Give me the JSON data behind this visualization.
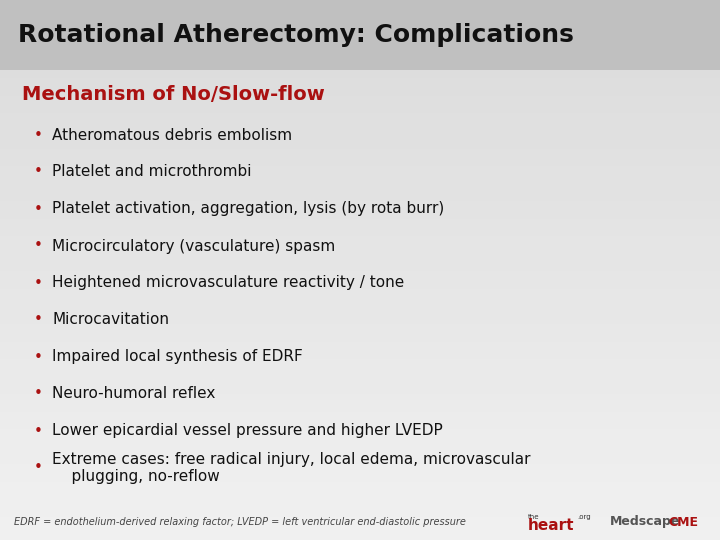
{
  "title": "Rotational Atherectomy: Complications",
  "subtitle": "Mechanism of No/Slow-flow",
  "bullet_points": [
    "Atheromatous debris embolism",
    "Platelet and microthrombi",
    "Platelet activation, aggregation, lysis (by rota burr)",
    "Microcirculatory (vasculature) spasm",
    "Heightened microvasculature reactivity / tone",
    "Microcavitation",
    "Impaired local synthesis of EDRF",
    "Neuro-humoral reflex",
    "Lower epicardial vessel pressure and higher LVEDP",
    "Extreme cases: free radical injury, local edema, microvascular\n    plugging, no-reflow"
  ],
  "footer": "EDRF = endothelium-derived relaxing factor; LVEDP = left ventricular end-diastolic pressure",
  "bg_color": "#d0d0d0",
  "title_bar_color": "#c4c4c4",
  "title_color": "#111111",
  "subtitle_color": "#aa1111",
  "bullet_color": "#aa1111",
  "text_color": "#111111",
  "footer_color": "#444444",
  "title_fontsize": 18,
  "subtitle_fontsize": 14,
  "bullet_fontsize": 11,
  "footer_fontsize": 7
}
